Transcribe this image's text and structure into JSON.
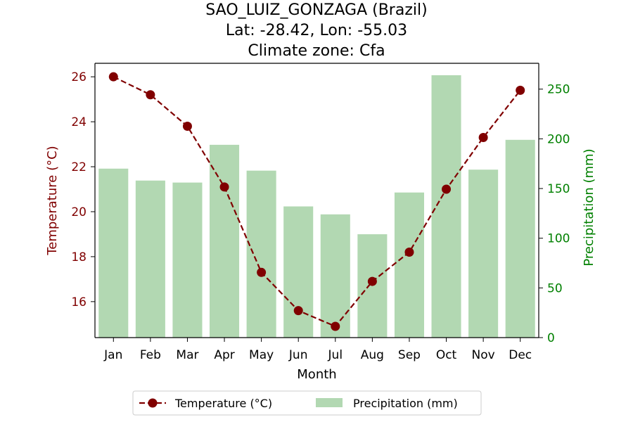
{
  "chart_data": {
    "type": "bar+line",
    "title_lines": [
      "SAO_LUIZ_GONZAGA (Brazil)",
      "Lat: -28.42, Lon: -55.03",
      "Climate zone: Cfa"
    ],
    "xlabel": "Month",
    "categories": [
      "Jan",
      "Feb",
      "Mar",
      "Apr",
      "May",
      "Jun",
      "Jul",
      "Aug",
      "Sep",
      "Oct",
      "Nov",
      "Dec"
    ],
    "temperature": {
      "name": "Temperature (°C)",
      "axis_label": "Temperature (°C)",
      "color": "#800000",
      "ylim": [
        14.4,
        26.6
      ],
      "ticks": [
        16,
        18,
        20,
        22,
        24,
        26
      ],
      "values": [
        26.0,
        25.2,
        23.8,
        21.1,
        17.3,
        15.6,
        14.9,
        16.9,
        18.2,
        21.0,
        23.3,
        25.4
      ]
    },
    "precipitation": {
      "name": "Precipitation (mm)",
      "axis_label": "Precipitation (mm)",
      "color": "#b2d8b2",
      "axis_color": "#008000",
      "ylim": [
        0,
        276
      ],
      "ticks": [
        0,
        50,
        100,
        150,
        200,
        250
      ],
      "values": [
        170,
        158,
        156,
        194,
        168,
        132,
        124,
        104,
        146,
        264,
        169,
        199
      ]
    },
    "legend_position": "bottom-center"
  }
}
